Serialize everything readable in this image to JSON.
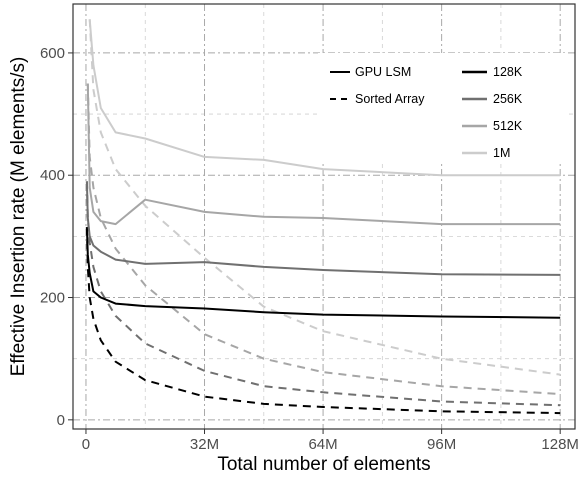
{
  "chart_data": {
    "type": "line",
    "title": "",
    "xlabel": "Total number of elements",
    "ylabel": "Effective Insertion rate (M elements/s)",
    "x_unit": "M elements",
    "xlim": [
      -3.5,
      132
    ],
    "ylim": [
      -15,
      680
    ],
    "x_ticks": [
      {
        "value": 0,
        "label": "0"
      },
      {
        "value": 32,
        "label": "32M"
      },
      {
        "value": 64,
        "label": "64M"
      },
      {
        "value": 96,
        "label": "96M"
      },
      {
        "value": 128,
        "label": "128M"
      }
    ],
    "y_ticks": [
      {
        "value": 0,
        "label": "0"
      },
      {
        "value": 200,
        "label": "200"
      },
      {
        "value": 400,
        "label": "400"
      },
      {
        "value": 600,
        "label": "600"
      }
    ],
    "grid": true,
    "legend": {
      "position": "top-right",
      "style_entries": [
        {
          "label": "GPU LSM",
          "dash": "solid"
        },
        {
          "label": "Sorted Array",
          "dash": "dashed"
        }
      ],
      "color_entries": [
        {
          "label": "128K",
          "color": "#000000"
        },
        {
          "label": "256K",
          "color": "#707070"
        },
        {
          "label": "512K",
          "color": "#a6a6a6"
        },
        {
          "label": "1M",
          "color": "#cccccc"
        }
      ]
    },
    "series": [
      {
        "name": "128K",
        "method": "GPU LSM",
        "color": "#000000",
        "points": [
          [
            0.25,
            315
          ],
          [
            0.5,
            270
          ],
          [
            1,
            240
          ],
          [
            2,
            210
          ],
          [
            4,
            200
          ],
          [
            8,
            190
          ],
          [
            16,
            186
          ],
          [
            32,
            182
          ],
          [
            48,
            176
          ],
          [
            64,
            172
          ],
          [
            96,
            169
          ],
          [
            128,
            167
          ]
        ]
      },
      {
        "name": "256K",
        "method": "GPU LSM",
        "color": "#707070",
        "points": [
          [
            0.25,
            390
          ],
          [
            0.5,
            330
          ],
          [
            1,
            300
          ],
          [
            2,
            285
          ],
          [
            4,
            275
          ],
          [
            8,
            262
          ],
          [
            16,
            255
          ],
          [
            32,
            258
          ],
          [
            48,
            250
          ],
          [
            64,
            245
          ],
          [
            96,
            238
          ],
          [
            128,
            237
          ]
        ]
      },
      {
        "name": "512K",
        "method": "GPU LSM",
        "color": "#a6a6a6",
        "points": [
          [
            0.5,
            550
          ],
          [
            1,
            380
          ],
          [
            2,
            340
          ],
          [
            4,
            325
          ],
          [
            8,
            320
          ],
          [
            16,
            360
          ],
          [
            32,
            340
          ],
          [
            48,
            332
          ],
          [
            64,
            330
          ],
          [
            96,
            320
          ],
          [
            128,
            320
          ]
        ]
      },
      {
        "name": "1M",
        "method": "GPU LSM",
        "color": "#cccccc",
        "points": [
          [
            1,
            655
          ],
          [
            2,
            580
          ],
          [
            4,
            510
          ],
          [
            8,
            470
          ],
          [
            16,
            460
          ],
          [
            32,
            430
          ],
          [
            48,
            425
          ],
          [
            64,
            410
          ],
          [
            96,
            400
          ],
          [
            128,
            400
          ]
        ]
      },
      {
        "name": "128K",
        "method": "Sorted Array",
        "color": "#000000",
        "points": [
          [
            0.25,
            315
          ],
          [
            0.5,
            250
          ],
          [
            1,
            200
          ],
          [
            2,
            165
          ],
          [
            4,
            130
          ],
          [
            8,
            95
          ],
          [
            16,
            65
          ],
          [
            32,
            38
          ],
          [
            48,
            26
          ],
          [
            64,
            21
          ],
          [
            96,
            14
          ],
          [
            128,
            11
          ]
        ]
      },
      {
        "name": "256K",
        "method": "Sorted Array",
        "color": "#707070",
        "points": [
          [
            0.25,
            390
          ],
          [
            0.5,
            330
          ],
          [
            1,
            290
          ],
          [
            2,
            250
          ],
          [
            4,
            210
          ],
          [
            8,
            170
          ],
          [
            16,
            125
          ],
          [
            32,
            80
          ],
          [
            48,
            55
          ],
          [
            64,
            45
          ],
          [
            96,
            30
          ],
          [
            128,
            24
          ]
        ]
      },
      {
        "name": "512K",
        "method": "Sorted Array",
        "color": "#a6a6a6",
        "points": [
          [
            0.5,
            550
          ],
          [
            1,
            430
          ],
          [
            2,
            380
          ],
          [
            4,
            330
          ],
          [
            8,
            280
          ],
          [
            16,
            220
          ],
          [
            32,
            140
          ],
          [
            48,
            100
          ],
          [
            64,
            78
          ],
          [
            96,
            55
          ],
          [
            128,
            42
          ]
        ]
      },
      {
        "name": "1M",
        "method": "Sorted Array",
        "color": "#cccccc",
        "points": [
          [
            1,
            655
          ],
          [
            2,
            540
          ],
          [
            4,
            470
          ],
          [
            8,
            410
          ],
          [
            16,
            350
          ],
          [
            32,
            265
          ],
          [
            48,
            185
          ],
          [
            64,
            145
          ],
          [
            96,
            100
          ],
          [
            128,
            74
          ]
        ]
      }
    ]
  }
}
